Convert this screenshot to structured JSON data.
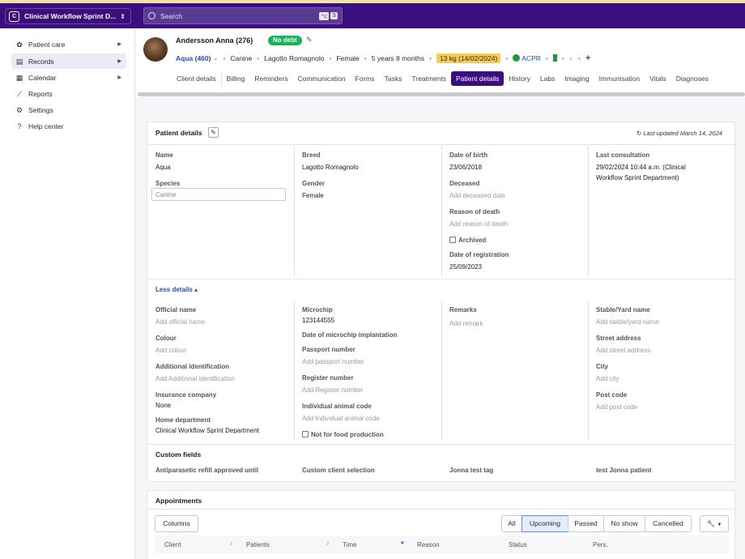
{
  "workspace": {
    "badge": "C",
    "name": "Clinical Workflow Sprint D..."
  },
  "search": {
    "placeholder": "Search",
    "kbd1": "⌥",
    "kbd2": "S"
  },
  "sidebar": {
    "items": [
      {
        "label": "Patient care",
        "icon": "paw-icon",
        "has_arrow": true
      },
      {
        "label": "Records",
        "icon": "records-icon",
        "has_arrow": true
      },
      {
        "label": "Calendar",
        "icon": "calendar-icon",
        "has_arrow": true
      },
      {
        "label": "Reports",
        "icon": "chart-icon",
        "has_arrow": false
      },
      {
        "label": "Settings",
        "icon": "gear-icon",
        "has_arrow": false
      },
      {
        "label": "Help center",
        "icon": "help-icon",
        "has_arrow": false
      }
    ]
  },
  "header": {
    "owner": "Andersson Anna",
    "owner_id": "(276)",
    "debt_badge": "No debt",
    "patient_name": "Aqua (460)",
    "species": "Canine",
    "breed": "Lagotto Romagnolo",
    "gender": "Female",
    "age": "5 years 8 months",
    "weight": "13 kg (14/02/2024)",
    "acpr": "ACPR"
  },
  "tabs": [
    "Client details",
    "Billing",
    "Reminders",
    "Communication",
    "Forms",
    "Tasks",
    "Treatments",
    "Patient details",
    "History",
    "Labs",
    "Imaging",
    "Immunisation",
    "Vitals",
    "Diagnoses"
  ],
  "active_tab": "Patient details",
  "details": {
    "title": "Patient details",
    "last_updated": "Last updated March 14, 2024",
    "name_label": "Name",
    "name_value": "Aqua",
    "species_label": "Species",
    "species_value": "Canine",
    "breed_label": "Breed",
    "breed_value": "Lagotto Romagnolo",
    "gender_label": "Gender",
    "gender_value": "Female",
    "dob_label": "Date of birth",
    "dob_value": "23/06/2018",
    "deceased_label": "Deceased",
    "deceased_ph": "Add deceased date",
    "reason_label": "Reason of death",
    "reason_ph": "Add reason of death",
    "archived_label": "Archived",
    "reg_label": "Date of registration",
    "reg_value": "25/09/2023",
    "last_consult_label": "Last consultation",
    "last_consult_line1": "29/02/2024 10:44 a.m. (Clinical",
    "last_consult_line2": "Workflow Sprint Department)",
    "less_details": "Less details",
    "official_label": "Official name",
    "official_ph": "Add official name",
    "colour_label": "Colour",
    "colour_ph": "Add colour",
    "addid_label": "Additional identification",
    "addid_ph": "Add Additional identification",
    "insurance_label": "Insurance company",
    "insurance_value": "None",
    "homedept_label": "Home department",
    "homedept_value": "Clinical Workflow Sprint Department",
    "microchip_label": "Microchip",
    "microchip_value": "123144555",
    "microchip_date_label": "Date of microchip implantation",
    "passport_label": "Passport number",
    "passport_ph": "Add passport number",
    "register_label": "Register number",
    "register_ph": "Add Register number",
    "animalcode_label": "Individual animal code",
    "animalcode_ph": "Add Individual animal code",
    "food_label": "Not for food production",
    "remarks_label": "Remarks",
    "remarks_ph": "Add remark",
    "stable_label": "Stable/Yard name",
    "stable_ph": "Add stable/yard name",
    "street_label": "Street address",
    "street_ph": "Add street address",
    "city_label": "City",
    "city_ph": "Add city",
    "post_label": "Post code",
    "post_ph": "Add post code",
    "custom_title": "Custom fields",
    "custom_fields": [
      "Antiparasetic refill approved until",
      "Custom client selection",
      "Jonna test tag",
      "test Jonna patient"
    ]
  },
  "appointments": {
    "title": "Appointments",
    "columns_button": "Columns",
    "filters": [
      "All",
      "Upcoming",
      "Passed",
      "No show",
      "Cancelled"
    ],
    "active_filter": "Upcoming",
    "headers": [
      "Client",
      "Patients",
      "Time",
      "Reason",
      "Status",
      "Pers."
    ]
  },
  "colors": {
    "brand": "#3b0e7d",
    "accent": "#1c4fc4",
    "success": "#19b15a",
    "warning": "#f7cc4f"
  }
}
